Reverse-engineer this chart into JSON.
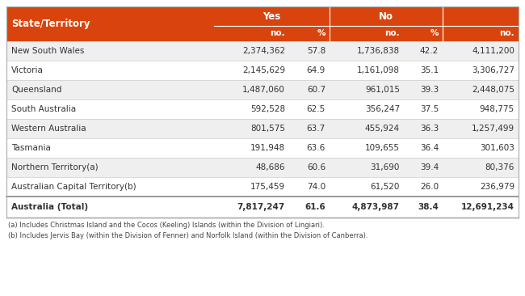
{
  "title_col": "State/Territory",
  "sub_headers": [
    "no.",
    "%",
    "no.",
    "%",
    "no."
  ],
  "rows": [
    {
      "state": "New South Wales",
      "yes_no": "2,374,362",
      "yes_pct": "57.8",
      "no_no": "1,736,838",
      "no_pct": "42.2",
      "total": "4,111,200",
      "bold": false
    },
    {
      "state": "Victoria",
      "yes_no": "2,145,629",
      "yes_pct": "64.9",
      "no_no": "1,161,098",
      "no_pct": "35.1",
      "total": "3,306,727",
      "bold": false
    },
    {
      "state": "Queensland",
      "yes_no": "1,487,060",
      "yes_pct": "60.7",
      "no_no": "961,015",
      "no_pct": "39.3",
      "total": "2,448,075",
      "bold": false
    },
    {
      "state": "South Australia",
      "yes_no": "592,528",
      "yes_pct": "62.5",
      "no_no": "356,247",
      "no_pct": "37.5",
      "total": "948,775",
      "bold": false
    },
    {
      "state": "Western Australia",
      "yes_no": "801,575",
      "yes_pct": "63.7",
      "no_no": "455,924",
      "no_pct": "36.3",
      "total": "1,257,499",
      "bold": false
    },
    {
      "state": "Tasmania",
      "yes_no": "191,948",
      "yes_pct": "63.6",
      "no_no": "109,655",
      "no_pct": "36.4",
      "total": "301,603",
      "bold": false
    },
    {
      "state": "Northern Territory(a)",
      "yes_no": "48,686",
      "yes_pct": "60.6",
      "no_no": "31,690",
      "no_pct": "39.4",
      "total": "80,376",
      "bold": false
    },
    {
      "state": "Australian Capital Territory(b)",
      "yes_no": "175,459",
      "yes_pct": "74.0",
      "no_no": "61,520",
      "no_pct": "26.0",
      "total": "236,979",
      "bold": false
    },
    {
      "state": "Australia (Total)",
      "yes_no": "7,817,247",
      "yes_pct": "61.6",
      "no_no": "4,873,987",
      "no_pct": "38.4",
      "total": "12,691,234",
      "bold": true
    }
  ],
  "footnotes": [
    "(a) Includes Christmas Island and the Cocos (Keeling) Islands (within the Division of Lingiari).",
    "(b) Includes Jervis Bay (within the Division of Fenner) and Norfolk Island (within the Division of Canberra)."
  ],
  "header_bg": "#d9440e",
  "header_text": "#ffffff",
  "row_bg_odd": "#efefef",
  "row_bg_even": "#ffffff",
  "row_text": "#333333",
  "border_color": "#cccccc",
  "footnote_color": "#444444"
}
